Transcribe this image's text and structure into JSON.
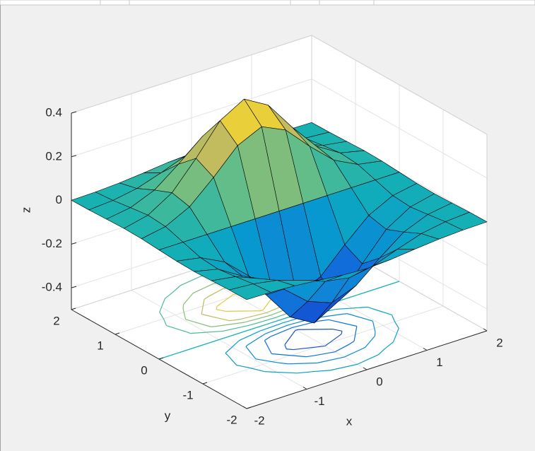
{
  "chart_data": {
    "type": "surfc",
    "x": [
      -2,
      -1.6,
      -1.2,
      -0.8,
      -0.4,
      0,
      0.4,
      0.8,
      1.2,
      1.6,
      2
    ],
    "y": [
      -2,
      -1.6,
      -1.2,
      -0.8,
      -0.4,
      0,
      0.4,
      0.8,
      1.2,
      1.6,
      2
    ],
    "z": [
      [
        -0.001,
        -0.003,
        -0.009,
        -0.019,
        -0.031,
        -0.037,
        -0.031,
        -0.019,
        -0.009,
        -0.003,
        -0.001
      ],
      [
        -0.002,
        -0.01,
        -0.029,
        -0.065,
        -0.105,
        -0.124,
        -0.105,
        -0.065,
        -0.029,
        -0.01,
        -0.002
      ],
      [
        -0.005,
        -0.022,
        -0.067,
        -0.15,
        -0.242,
        -0.284,
        -0.242,
        -0.15,
        -0.067,
        -0.022,
        -0.005
      ],
      [
        -0.008,
        -0.033,
        -0.1,
        -0.222,
        -0.359,
        -0.422,
        -0.359,
        -0.222,
        -0.1,
        -0.033,
        -0.008
      ],
      [
        -0.006,
        -0.026,
        -0.081,
        -0.18,
        -0.29,
        -0.341,
        -0.29,
        -0.18,
        -0.081,
        -0.026,
        -0.006
      ],
      [
        0,
        0,
        0,
        0,
        0,
        0,
        0,
        0,
        0,
        0,
        0
      ],
      [
        0.006,
        0.026,
        0.081,
        0.18,
        0.29,
        0.341,
        0.29,
        0.18,
        0.081,
        0.026,
        0.006
      ],
      [
        0.008,
        0.033,
        0.1,
        0.222,
        0.359,
        0.422,
        0.359,
        0.222,
        0.1,
        0.033,
        0.008
      ],
      [
        0.005,
        0.022,
        0.067,
        0.15,
        0.242,
        0.284,
        0.242,
        0.15,
        0.067,
        0.022,
        0.005
      ],
      [
        0.002,
        0.01,
        0.029,
        0.065,
        0.105,
        0.124,
        0.105,
        0.065,
        0.029,
        0.01,
        0.002
      ],
      [
        0.001,
        0.003,
        0.009,
        0.019,
        0.031,
        0.037,
        0.031,
        0.019,
        0.009,
        0.003,
        0.001
      ]
    ],
    "xlim": [
      -2,
      2
    ],
    "ylim": [
      -2,
      2
    ],
    "zlim": [
      -0.5,
      0.4
    ],
    "xticks": [
      -2,
      -1,
      0,
      1,
      2
    ],
    "yticks": [
      -2,
      -1,
      0,
      1,
      2
    ],
    "zticks": [
      -0.4,
      -0.2,
      0,
      0.2,
      0.4
    ],
    "xlabel": "x",
    "ylabel": "y",
    "zlabel": "z",
    "grid": true,
    "colormap": "parula",
    "edge_color": "#000000"
  }
}
